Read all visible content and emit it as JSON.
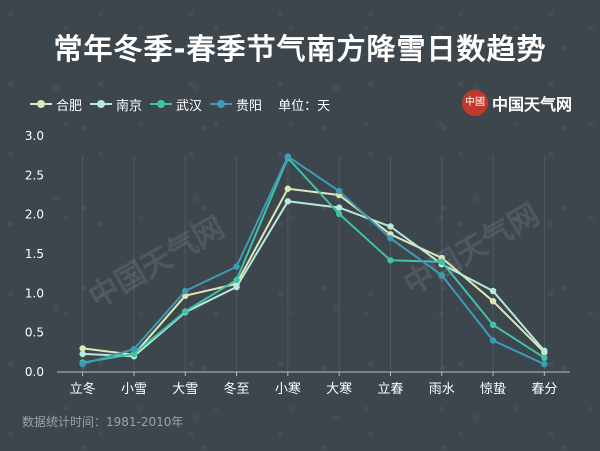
{
  "title": "常年冬季-春季节气南方降雪日数趋势",
  "legend_unit": "单位：天",
  "brand": {
    "seal": "中國",
    "name": "中国天气网"
  },
  "watermark": "中国天气网",
  "footer": "数据统计时间：1981-2010年",
  "chart_data": {
    "type": "line",
    "categories": [
      "立冬",
      "小雪",
      "大雪",
      "冬至",
      "小寒",
      "大寒",
      "立春",
      "雨水",
      "惊蛰",
      "春分"
    ],
    "ylim": [
      0,
      3.0
    ],
    "yticks": [
      "0.0",
      "0.5",
      "1.0",
      "1.5",
      "2.0",
      "2.5",
      "3.0"
    ],
    "grid": false,
    "legend_position": "top-left",
    "series": [
      {
        "name": "合肥",
        "color": "#dfe8b4",
        "values": [
          0.3,
          0.22,
          0.97,
          1.12,
          2.33,
          2.25,
          1.75,
          1.45,
          0.9,
          0.25
        ]
      },
      {
        "name": "南京",
        "color": "#b7ead8",
        "values": [
          0.23,
          0.2,
          0.76,
          1.08,
          2.17,
          2.09,
          1.85,
          1.37,
          1.03,
          0.27
        ]
      },
      {
        "name": "武汉",
        "color": "#3fc2a8",
        "values": [
          0.12,
          0.23,
          0.77,
          1.17,
          2.72,
          2.01,
          1.42,
          1.4,
          0.6,
          0.18
        ]
      },
      {
        "name": "贵阳",
        "color": "#3e9bb6",
        "values": [
          0.1,
          0.29,
          1.03,
          1.34,
          2.74,
          2.3,
          1.7,
          1.23,
          0.4,
          0.1
        ]
      }
    ]
  }
}
